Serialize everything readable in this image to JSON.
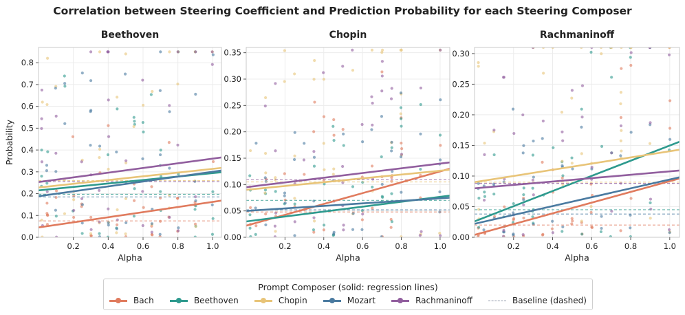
{
  "figure": {
    "title": "Correlation between Steering Coefficient and Prediction Probability for each Steering Composer"
  },
  "colors": {
    "Bach": "#e07b5e",
    "Beethoven": "#2e9a8e",
    "Chopin": "#e8c478",
    "Mozart": "#4a7aa0",
    "Rachmaninoff": "#915e9e",
    "baseline": "#8a94a6"
  },
  "legend": {
    "title": "Prompt Composer (solid: regression lines)",
    "items": [
      {
        "label": "Bach",
        "key": "Bach"
      },
      {
        "label": "Beethoven",
        "key": "Beethoven"
      },
      {
        "label": "Chopin",
        "key": "Chopin"
      },
      {
        "label": "Mozart",
        "key": "Mozart"
      },
      {
        "label": "Rachmaninoff",
        "key": "Rachmaninoff"
      }
    ],
    "baseline_label": "Baseline (dashed)"
  },
  "chart_data": [
    {
      "type": "scatter",
      "title": "Beethoven",
      "xlabel": "Alpha",
      "ylabel": "Probability",
      "xlim": [
        0.0,
        1.05
      ],
      "ylim": [
        0.0,
        0.87
      ],
      "xticks": [
        0.2,
        0.4,
        0.6,
        0.8,
        1.0
      ],
      "xtick_labels": [
        "0.2",
        "0.4",
        "0.6",
        "0.8",
        "1.0"
      ],
      "yticks": [
        0.0,
        0.1,
        0.2,
        0.3,
        0.4,
        0.5,
        0.6,
        0.7,
        0.8
      ],
      "ytick_labels": [
        "0.0",
        "0.1",
        "0.2",
        "0.3",
        "0.4",
        "0.5",
        "0.6",
        "0.7",
        "0.8"
      ],
      "grid": true,
      "regression": [
        {
          "name": "Bach",
          "x": [
            0.0,
            1.05
          ],
          "y": [
            0.045,
            0.168
          ]
        },
        {
          "name": "Beethoven",
          "x": [
            0.0,
            1.05
          ],
          "y": [
            0.215,
            0.298
          ]
        },
        {
          "name": "Chopin",
          "x": [
            0.0,
            1.05
          ],
          "y": [
            0.228,
            0.318
          ]
        },
        {
          "name": "Mozart",
          "x": [
            0.0,
            1.05
          ],
          "y": [
            0.188,
            0.306
          ]
        },
        {
          "name": "Rachmaninoff",
          "x": [
            0.0,
            1.05
          ],
          "y": [
            0.253,
            0.366
          ]
        }
      ],
      "baselines": [
        {
          "name": "Bach",
          "y": 0.075
        },
        {
          "name": "Beethoven",
          "y": 0.197
        },
        {
          "name": "Chopin",
          "y": 0.26
        },
        {
          "name": "Mozart",
          "y": 0.185
        },
        {
          "name": "Rachmaninoff",
          "y": 0.255
        }
      ],
      "scatter_alphas": [
        0.02,
        0.05,
        0.1,
        0.15,
        0.2,
        0.25,
        0.3,
        0.35,
        0.4,
        0.45,
        0.5,
        0.55,
        0.6,
        0.65,
        0.7,
        0.75,
        0.8,
        0.9,
        1.0
      ],
      "scatter_points_per_composer": 38,
      "scatter_max": 0.85
    },
    {
      "type": "scatter",
      "title": "Chopin",
      "xlabel": "Alpha",
      "ylabel": "",
      "xlim": [
        0.0,
        1.05
      ],
      "ylim": [
        0.0,
        0.36
      ],
      "xticks": [
        0.2,
        0.4,
        0.6,
        0.8,
        1.0
      ],
      "xtick_labels": [
        "0.2",
        "0.4",
        "0.6",
        "0.8",
        "1.0"
      ],
      "yticks": [
        0.0,
        0.05,
        0.1,
        0.15,
        0.2,
        0.25,
        0.3,
        0.35
      ],
      "ytick_labels": [
        "0.00",
        "0.05",
        "0.10",
        "0.15",
        "0.20",
        "0.25",
        "0.30",
        "0.35"
      ],
      "grid": true,
      "regression": [
        {
          "name": "Bach",
          "x": [
            0.0,
            1.05
          ],
          "y": [
            0.022,
            0.13
          ]
        },
        {
          "name": "Beethoven",
          "x": [
            0.0,
            1.05
          ],
          "y": [
            0.03,
            0.079
          ]
        },
        {
          "name": "Chopin",
          "x": [
            0.0,
            1.05
          ],
          "y": [
            0.09,
            0.128
          ]
        },
        {
          "name": "Mozart",
          "x": [
            0.0,
            1.05
          ],
          "y": [
            0.05,
            0.075
          ]
        },
        {
          "name": "Rachmaninoff",
          "x": [
            0.0,
            1.05
          ],
          "y": [
            0.095,
            0.142
          ]
        }
      ],
      "baselines": [
        {
          "name": "Bach",
          "y": 0.048
        },
        {
          "name": "Beethoven",
          "y": 0.07
        },
        {
          "name": "Chopin",
          "y": 0.105
        },
        {
          "name": "Mozart",
          "y": 0.052
        },
        {
          "name": "Rachmaninoff",
          "y": 0.109
        }
      ],
      "scatter_alphas": [
        0.02,
        0.05,
        0.1,
        0.15,
        0.2,
        0.25,
        0.3,
        0.35,
        0.4,
        0.45,
        0.5,
        0.55,
        0.6,
        0.65,
        0.7,
        0.75,
        0.8,
        0.9,
        1.0
      ],
      "scatter_points_per_composer": 38,
      "scatter_max": 0.355
    },
    {
      "type": "scatter",
      "title": "Rachmaninoff",
      "xlabel": "Alpha",
      "ylabel": "",
      "xlim": [
        0.0,
        1.05
      ],
      "ylim": [
        0.0,
        0.31
      ],
      "xticks": [
        0.2,
        0.4,
        0.6,
        0.8,
        1.0
      ],
      "xtick_labels": [
        "0.2",
        "0.4",
        "0.6",
        "0.8",
        "1.0"
      ],
      "yticks": [
        0.0,
        0.05,
        0.1,
        0.15,
        0.2,
        0.25,
        0.3
      ],
      "ytick_labels": [
        "0.00",
        "0.05",
        "0.10",
        "0.15",
        "0.20",
        "0.25",
        "0.30"
      ],
      "grid": true,
      "regression": [
        {
          "name": "Bach",
          "x": [
            0.0,
            1.05
          ],
          "y": [
            0.004,
            0.096
          ]
        },
        {
          "name": "Beethoven",
          "x": [
            0.0,
            1.05
          ],
          "y": [
            0.026,
            0.156
          ]
        },
        {
          "name": "Chopin",
          "x": [
            0.0,
            1.05
          ],
          "y": [
            0.09,
            0.143
          ]
        },
        {
          "name": "Mozart",
          "x": [
            0.0,
            1.05
          ],
          "y": [
            0.022,
            0.098
          ]
        },
        {
          "name": "Rachmaninoff",
          "x": [
            0.0,
            1.05
          ],
          "y": [
            0.08,
            0.109
          ]
        }
      ],
      "baselines": [
        {
          "name": "Bach",
          "y": 0.02
        },
        {
          "name": "Beethoven",
          "y": 0.045
        },
        {
          "name": "Chopin",
          "y": 0.09
        },
        {
          "name": "Mozart",
          "y": 0.038
        },
        {
          "name": "Rachmaninoff",
          "y": 0.088
        }
      ],
      "scatter_alphas": [
        0.02,
        0.05,
        0.1,
        0.15,
        0.2,
        0.25,
        0.3,
        0.35,
        0.4,
        0.45,
        0.5,
        0.55,
        0.6,
        0.65,
        0.7,
        0.75,
        0.8,
        0.9,
        1.0
      ],
      "scatter_points_per_composer": 38,
      "scatter_max": 0.31
    }
  ]
}
